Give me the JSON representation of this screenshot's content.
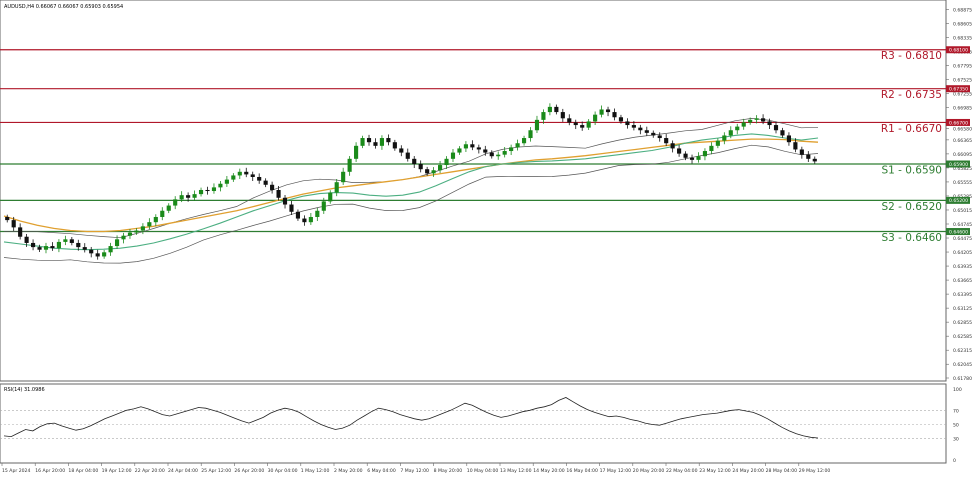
{
  "header": {
    "symbol_line": "AUDUSD,H4  0.66067 0.66067 0.65903 0.65954",
    "indicator_line": "RSI(14) 31.0986"
  },
  "colors": {
    "background": "#ffffff",
    "candle_up": "#1a8a1a",
    "candle_down": "#111111",
    "resistance": "#b0182a",
    "support": "#2e7d32",
    "ma_fast": "#4caf82",
    "ma_slow": "#e0a030",
    "bollinger": "#555555",
    "rsi_line": "#222222",
    "price_tag_bg": "#b0182a",
    "support_tag_bg": "#2e7d32"
  },
  "chart_data": [
    {
      "type": "candlestick",
      "title": "AUDUSD,H4",
      "y_ticks": [
        "0.68875",
        "0.68605",
        "0.68335",
        "0.68065",
        "0.67795",
        "0.67525",
        "0.67255",
        "0.66985",
        "0.66580",
        "0.66365",
        "0.66095",
        "0.65825",
        "0.65555",
        "0.65285",
        "0.65015",
        "0.64745",
        "0.64475",
        "0.64205",
        "0.63935",
        "0.63665",
        "0.63395",
        "0.63125",
        "0.62855",
        "0.62585",
        "0.62315",
        "0.62045",
        "0.61780"
      ],
      "ylim": [
        0.6178,
        0.69
      ],
      "x_ticks": [
        "15 Apr 2024",
        "16 Apr 20:00",
        "18 Apr 04:00",
        "19 Apr 12:00",
        "22 Apr 20:00",
        "24 Apr 04:00",
        "25 Apr 12:00",
        "26 Apr 20:00",
        "30 Apr 04:00",
        "1 May 12:00",
        "2 May 20:00",
        "6 May 04:00",
        "7 May 12:00",
        "8 May 20:00",
        "10 May 04:00",
        "13 May 12:00",
        "14 May 20:00",
        "16 May 04:00",
        "17 May 12:00",
        "20 May 20:00",
        "22 May 04:00",
        "23 May 12:00",
        "24 May 20:00",
        "28 May 04:00",
        "29 May 12:00"
      ],
      "levels": [
        {
          "name": "R3 - 0.6810",
          "value": 0.681,
          "tag": "0.68100",
          "kind": "resistance"
        },
        {
          "name": "R2 - 0.6735",
          "value": 0.6735,
          "tag": "0.67350",
          "kind": "resistance"
        },
        {
          "name": "R1 - 0.6670",
          "value": 0.667,
          "tag": "0.66700",
          "kind": "resistance"
        },
        {
          "name": "S1 - 0.6590",
          "value": 0.659,
          "tag": "0.65900",
          "kind": "support"
        },
        {
          "name": "S2 - 0.6520",
          "value": 0.652,
          "tag": "0.65200",
          "kind": "support"
        },
        {
          "name": "S3 - 0.6460",
          "value": 0.646,
          "tag": "0.64600",
          "kind": "support"
        }
      ],
      "close_series": [
        0.6482,
        0.6468,
        0.645,
        0.6438,
        0.643,
        0.6425,
        0.6432,
        0.6428,
        0.644,
        0.6445,
        0.6438,
        0.643,
        0.6425,
        0.6418,
        0.6412,
        0.642,
        0.6432,
        0.6445,
        0.6452,
        0.6458,
        0.6462,
        0.647,
        0.6478,
        0.6488,
        0.65,
        0.651,
        0.6522,
        0.653,
        0.6525,
        0.6532,
        0.654,
        0.6538,
        0.6545,
        0.6552,
        0.656,
        0.6568,
        0.6575,
        0.657,
        0.6565,
        0.6558,
        0.655,
        0.654,
        0.6525,
        0.6512,
        0.6498,
        0.6485,
        0.6478,
        0.6488,
        0.65,
        0.6518,
        0.6535,
        0.6555,
        0.6575,
        0.66,
        0.6625,
        0.664,
        0.6632,
        0.6625,
        0.664,
        0.6632,
        0.662,
        0.6612,
        0.66,
        0.659,
        0.658,
        0.6572,
        0.6578,
        0.6588,
        0.66,
        0.6612,
        0.662,
        0.6628,
        0.6622,
        0.6618,
        0.6612,
        0.6605,
        0.6608,
        0.6615,
        0.6622,
        0.663,
        0.664,
        0.6655,
        0.6675,
        0.669,
        0.67,
        0.669,
        0.6678,
        0.667,
        0.6665,
        0.666,
        0.6672,
        0.6685,
        0.6695,
        0.669,
        0.668,
        0.6672,
        0.6665,
        0.666,
        0.6655,
        0.665,
        0.6645,
        0.664,
        0.663,
        0.662,
        0.661,
        0.6602,
        0.6598,
        0.6605,
        0.6615,
        0.6625,
        0.6635,
        0.6645,
        0.6655,
        0.6662,
        0.667,
        0.6675,
        0.6678,
        0.6672,
        0.6665,
        0.6655,
        0.6645,
        0.6632,
        0.6618,
        0.6608,
        0.66,
        0.6595
      ],
      "ma_fast": [
        0.644,
        0.6436,
        0.6432,
        0.6428,
        0.6426,
        0.6425,
        0.6426,
        0.6428,
        0.6432,
        0.6438,
        0.6446,
        0.6455,
        0.6465,
        0.6476,
        0.6488,
        0.65,
        0.651,
        0.652,
        0.6528,
        0.6533,
        0.6535,
        0.6534,
        0.653,
        0.6528,
        0.653,
        0.6536,
        0.6548,
        0.6562,
        0.6575,
        0.6585,
        0.659,
        0.6593,
        0.6595,
        0.6596,
        0.6598,
        0.66,
        0.6604,
        0.6608,
        0.6612,
        0.6616,
        0.6622,
        0.663,
        0.6636,
        0.664,
        0.6645,
        0.6648,
        0.6645,
        0.664,
        0.6636,
        0.664
      ],
      "ma_slow": [
        0.649,
        0.648,
        0.6472,
        0.6466,
        0.6462,
        0.646,
        0.646,
        0.6462,
        0.6466,
        0.647,
        0.6476,
        0.6482,
        0.6488,
        0.6494,
        0.65,
        0.6508,
        0.6516,
        0.6524,
        0.6532,
        0.6538,
        0.6544,
        0.6548,
        0.6552,
        0.6556,
        0.656,
        0.6565,
        0.657,
        0.6575,
        0.658,
        0.6585,
        0.659,
        0.6594,
        0.6598,
        0.66,
        0.6603,
        0.6606,
        0.661,
        0.6614,
        0.6618,
        0.6622,
        0.6626,
        0.663,
        0.6632,
        0.6634,
        0.6636,
        0.6638,
        0.6638,
        0.6637,
        0.6634,
        0.6632
      ]
    },
    {
      "type": "line",
      "title": "RSI(14) 31.0986",
      "y_ticks": [
        "100",
        "70",
        "50",
        "30",
        "0"
      ],
      "ylim": [
        0,
        100
      ],
      "levels": [
        70,
        50,
        30
      ],
      "series": [
        {
          "values": [
            34,
            33,
            38,
            43,
            41,
            47,
            51,
            52,
            48,
            45,
            42,
            44,
            48,
            53,
            58,
            62,
            66,
            70,
            72,
            75,
            72,
            68,
            64,
            62,
            65,
            68,
            71,
            74,
            73,
            70,
            67,
            63,
            59,
            55,
            52,
            56,
            60,
            66,
            70,
            73,
            71,
            67,
            61,
            55,
            50,
            46,
            43,
            45,
            49,
            56,
            62,
            68,
            73,
            71,
            68,
            64,
            61,
            58,
            56,
            58,
            62,
            66,
            70,
            75,
            80,
            77,
            72,
            67,
            63,
            60,
            62,
            65,
            68,
            70,
            73,
            75,
            78,
            84,
            88,
            82,
            76,
            71,
            67,
            64,
            61,
            62,
            60,
            57,
            55,
            52,
            50,
            49,
            52,
            55,
            58,
            60,
            62,
            64,
            65,
            66,
            68,
            70,
            71,
            69,
            67,
            63,
            58,
            52,
            46,
            41,
            37,
            34,
            32,
            31
          ]
        }
      ]
    }
  ]
}
